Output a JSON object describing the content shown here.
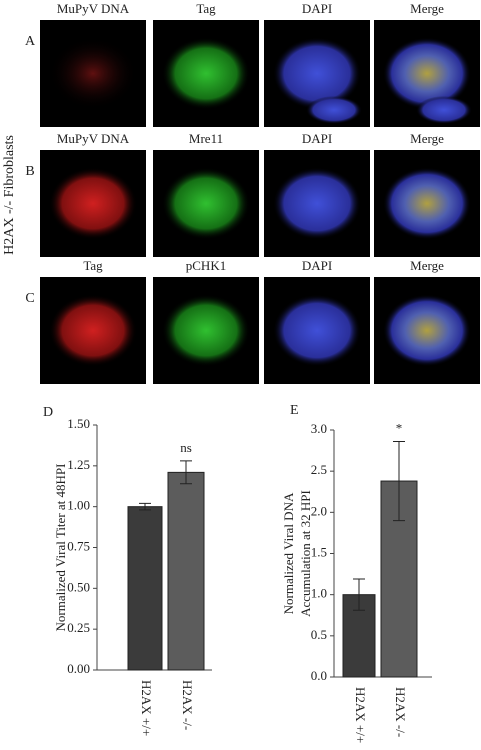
{
  "side_label": "H2AX -/- Fibroblasts",
  "panels": [
    {
      "letter": "A",
      "columns": [
        "MuPyV DNA",
        "Tag",
        "DAPI",
        "Merge"
      ]
    },
    {
      "letter": "B",
      "columns": [
        "MuPyV DNA",
        "Mre11",
        "DAPI",
        "Merge"
      ]
    },
    {
      "letter": "C",
      "columns": [
        "Tag",
        "pCHK1",
        "DAPI",
        "Merge"
      ]
    }
  ],
  "chart_data": [
    {
      "type": "bar",
      "letter": "D",
      "ylabel": "Normalized Viral Titer at 48HPI",
      "categories": [
        "H2AX +/+",
        "H2AX -/-"
      ],
      "values": [
        1.0,
        1.21
      ],
      "errors": [
        0.02,
        0.07
      ],
      "colors": [
        "#3b3b3b",
        "#5c5c5c"
      ],
      "annotation": "ns",
      "ylim": [
        0,
        1.5
      ],
      "yticks": [
        {
          "value": 0,
          "label": "0.00"
        },
        0.25,
        {
          "value": 0.5,
          "label": "0.50"
        },
        0.75,
        {
          "value": 1,
          "label": "1.00"
        },
        1.25,
        {
          "value": 1.5,
          "label": "1.50"
        }
      ]
    },
    {
      "type": "bar",
      "letter": "E",
      "ylabel": [
        "Normalized Viral DNA",
        "Accumulation at 32 HPI"
      ],
      "categories": [
        "H2AX +/+",
        "H2AX -/-"
      ],
      "values": [
        1.0,
        2.38
      ],
      "errors": [
        0.19,
        0.48
      ],
      "colors": [
        "#3b3b3b",
        "#5c5c5c"
      ],
      "annotation": "*",
      "ylim": [
        0,
        3
      ],
      "yticks": [
        {
          "value": 0,
          "label": "0.0"
        },
        0.5,
        {
          "value": 1,
          "label": "1.0"
        },
        1.5,
        {
          "value": 2,
          "label": "2.0"
        },
        2.5,
        {
          "value": 3,
          "label": "3.0"
        }
      ]
    }
  ]
}
